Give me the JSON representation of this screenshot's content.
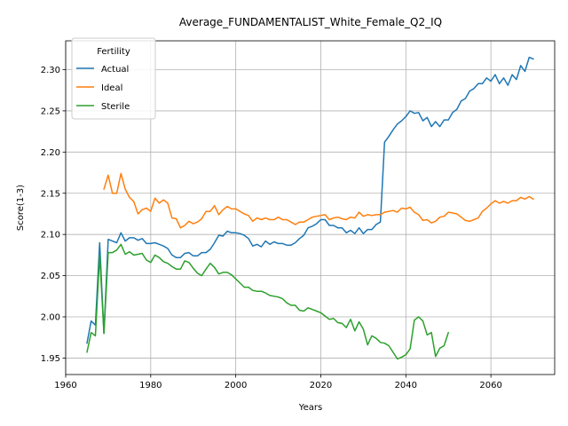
{
  "chart_data": {
    "type": "line",
    "title": "Average_FUNDAMENTALIST_White_Female_Q2_IQ",
    "xlabel": "Years",
    "ylabel": "Score(1-3)",
    "xlim": [
      1960,
      2075
    ],
    "ylim": [
      1.93,
      2.335
    ],
    "xticks": [
      1960,
      1980,
      2000,
      2020,
      2040,
      2060
    ],
    "yticks": [
      1.95,
      2.0,
      2.05,
      2.1,
      2.15,
      2.2,
      2.25,
      2.3
    ],
    "grid": true,
    "legend": {
      "title": "Fertility",
      "position": "upper-left"
    },
    "series": [
      {
        "name": "Actual",
        "color": "#1f77b4",
        "x": [
          1965,
          1966,
          1967,
          1968,
          1969,
          1970,
          1971,
          1972,
          1973,
          1974,
          1975,
          1976,
          1977,
          1978,
          1979,
          1980,
          1981,
          1982,
          1983,
          1984,
          1985,
          1986,
          1987,
          1988,
          1989,
          1990,
          1991,
          1992,
          1993,
          1994,
          1995,
          1996,
          1997,
          1998,
          1999,
          2000,
          2001,
          2002,
          2003,
          2004,
          2005,
          2006,
          2007,
          2008,
          2009,
          2010,
          2011,
          2012,
          2013,
          2014,
          2015,
          2016,
          2017,
          2018,
          2019,
          2020,
          2021,
          2022,
          2023,
          2024,
          2025,
          2026,
          2027,
          2028,
          2029,
          2030,
          2031,
          2032,
          2033,
          2034,
          2035,
          2036,
          2037,
          2038,
          2039,
          2040,
          2041,
          2042,
          2043,
          2044,
          2045,
          2046,
          2047,
          2048,
          2049,
          2050,
          2051,
          2052,
          2053,
          2054,
          2055,
          2056,
          2057,
          2058,
          2059,
          2060,
          2061,
          2062,
          2063,
          2064,
          2065,
          2066,
          2067,
          2068,
          2069,
          2070
        ],
        "y": [
          1.968,
          1.995,
          1.99,
          2.09,
          1.98,
          2.094,
          2.092,
          2.09,
          2.102,
          2.092,
          2.096,
          2.096,
          2.093,
          2.095,
          2.089,
          2.089,
          2.09,
          2.088,
          2.086,
          2.083,
          2.075,
          2.072,
          2.072,
          2.077,
          2.078,
          2.074,
          2.074,
          2.078,
          2.078,
          2.082,
          2.09,
          2.099,
          2.098,
          2.104,
          2.102,
          2.102,
          2.101,
          2.099,
          2.095,
          2.086,
          2.088,
          2.085,
          2.092,
          2.088,
          2.091,
          2.089,
          2.089,
          2.087,
          2.087,
          2.09,
          2.095,
          2.099,
          2.108,
          2.11,
          2.113,
          2.118,
          2.118,
          2.111,
          2.111,
          2.108,
          2.108,
          2.102,
          2.105,
          2.101,
          2.108,
          2.101,
          2.106,
          2.106,
          2.112,
          2.115,
          2.212,
          2.219,
          2.227,
          2.234,
          2.238,
          2.243,
          2.25,
          2.247,
          2.248,
          2.238,
          2.242,
          2.231,
          2.237,
          2.231,
          2.239,
          2.239,
          2.248,
          2.252,
          2.262,
          2.265,
          2.274,
          2.277,
          2.283,
          2.283,
          2.29,
          2.286,
          2.294,
          2.283,
          2.29,
          2.281,
          2.294,
          2.288,
          2.305,
          2.298,
          2.315,
          2.313
        ]
      },
      {
        "name": "Ideal",
        "color": "#ff7f0e",
        "x": [
          1969,
          1970,
          1971,
          1972,
          1973,
          1974,
          1975,
          1976,
          1977,
          1978,
          1979,
          1980,
          1981,
          1982,
          1983,
          1984,
          1985,
          1986,
          1987,
          1988,
          1989,
          1990,
          1991,
          1992,
          1993,
          1994,
          1995,
          1996,
          1997,
          1998,
          1999,
          2000,
          2001,
          2002,
          2003,
          2004,
          2005,
          2006,
          2007,
          2008,
          2009,
          2010,
          2011,
          2012,
          2013,
          2014,
          2015,
          2016,
          2017,
          2018,
          2019,
          2020,
          2021,
          2022,
          2023,
          2024,
          2025,
          2026,
          2027,
          2028,
          2029,
          2030,
          2031,
          2032,
          2033,
          2034,
          2035,
          2036,
          2037,
          2038,
          2039,
          2040,
          2041,
          2042,
          2043,
          2044,
          2045,
          2046,
          2047,
          2048,
          2049,
          2050,
          2051,
          2052,
          2053,
          2054,
          2055,
          2056,
          2057,
          2058,
          2059,
          2060,
          2061,
          2062,
          2063,
          2064,
          2065,
          2066,
          2067,
          2068,
          2069,
          2070
        ],
        "y": [
          2.155,
          2.172,
          2.15,
          2.15,
          2.174,
          2.155,
          2.145,
          2.14,
          2.125,
          2.13,
          2.132,
          2.128,
          2.144,
          2.138,
          2.142,
          2.138,
          2.12,
          2.119,
          2.108,
          2.111,
          2.116,
          2.113,
          2.115,
          2.119,
          2.128,
          2.128,
          2.135,
          2.124,
          2.13,
          2.134,
          2.131,
          2.131,
          2.128,
          2.125,
          2.123,
          2.116,
          2.12,
          2.118,
          2.12,
          2.118,
          2.118,
          2.121,
          2.118,
          2.118,
          2.115,
          2.112,
          2.115,
          2.115,
          2.118,
          2.121,
          2.122,
          2.123,
          2.124,
          2.118,
          2.12,
          2.121,
          2.119,
          2.118,
          2.121,
          2.12,
          2.127,
          2.122,
          2.124,
          2.123,
          2.124,
          2.124,
          2.127,
          2.128,
          2.129,
          2.127,
          2.132,
          2.131,
          2.133,
          2.127,
          2.124,
          2.117,
          2.118,
          2.114,
          2.116,
          2.121,
          2.122,
          2.127,
          2.126,
          2.125,
          2.121,
          2.117,
          2.116,
          2.118,
          2.12,
          2.128,
          2.132,
          2.137,
          2.141,
          2.138,
          2.14,
          2.138,
          2.141,
          2.141,
          2.145,
          2.143,
          2.146,
          2.143
        ]
      },
      {
        "name": "Sterile",
        "color": "#2ca02c",
        "x": [
          1965,
          1966,
          1967,
          1968,
          1969,
          1970,
          1971,
          1972,
          1973,
          1974,
          1975,
          1976,
          1977,
          1978,
          1979,
          1980,
          1981,
          1982,
          1983,
          1984,
          1985,
          1986,
          1987,
          1988,
          1989,
          1990,
          1991,
          1992,
          1993,
          1994,
          1995,
          1996,
          1997,
          1998,
          1999,
          2000,
          2001,
          2002,
          2003,
          2004,
          2005,
          2006,
          2007,
          2008,
          2009,
          2010,
          2011,
          2012,
          2013,
          2014,
          2015,
          2016,
          2017,
          2018,
          2019,
          2020,
          2021,
          2022,
          2023,
          2024,
          2025,
          2026,
          2027,
          2028,
          2029,
          2030,
          2031,
          2032,
          2033,
          2034,
          2035,
          2036,
          2037,
          2038,
          2039,
          2040,
          2041,
          2042,
          2043,
          2044,
          2045,
          2046,
          2047,
          2048,
          2049,
          2050
        ],
        "y": [
          1.957,
          1.981,
          1.977,
          2.075,
          1.98,
          2.078,
          2.078,
          2.081,
          2.088,
          2.076,
          2.079,
          2.075,
          2.076,
          2.077,
          2.069,
          2.066,
          2.075,
          2.072,
          2.067,
          2.065,
          2.061,
          2.058,
          2.058,
          2.068,
          2.066,
          2.059,
          2.053,
          2.05,
          2.058,
          2.065,
          2.06,
          2.052,
          2.054,
          2.054,
          2.051,
          2.046,
          2.041,
          2.036,
          2.036,
          2.032,
          2.031,
          2.031,
          2.029,
          2.026,
          2.025,
          2.024,
          2.022,
          2.017,
          2.014,
          2.014,
          2.008,
          2.007,
          2.011,
          2.009,
          2.007,
          2.005,
          2.001,
          1.997,
          1.998,
          1.993,
          1.992,
          1.987,
          1.997,
          1.983,
          1.994,
          1.985,
          1.966,
          1.977,
          1.974,
          1.969,
          1.968,
          1.965,
          1.957,
          1.949,
          1.951,
          1.954,
          1.961,
          1.996,
          2.0,
          1.995,
          1.978,
          1.981,
          1.952,
          1.962,
          1.965,
          1.981
        ]
      }
    ]
  }
}
